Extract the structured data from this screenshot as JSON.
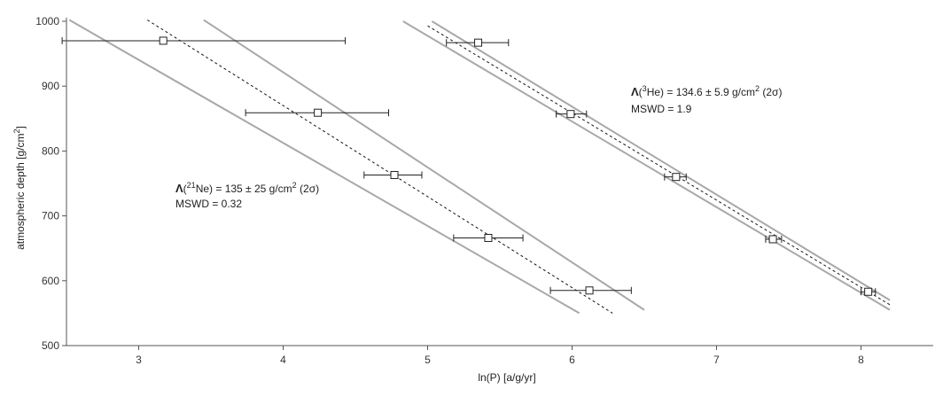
{
  "chart_data": {
    "type": "scatter",
    "xlabel": "ln(P) [a/g/yr]",
    "ylabel": "atmospheric depth [g/cm2]",
    "ylabel_parts": {
      "main": "atmospheric depth [g/cm",
      "sup": "2",
      "end": "]"
    },
    "xlim": [
      2.5,
      8.5
    ],
    "ylim": [
      500,
      1000
    ],
    "xticks": [
      3,
      4,
      5,
      6,
      7,
      8
    ],
    "yticks": [
      500,
      600,
      700,
      800,
      900,
      1000
    ],
    "grid": false,
    "series": [
      {
        "name": "21Ne",
        "points": [
          {
            "x": 3.17,
            "y": 970,
            "xerr_lo": 2.47,
            "xerr_hi": 4.43
          },
          {
            "x": 4.24,
            "y": 859,
            "xerr_lo": 3.74,
            "xerr_hi": 4.73
          },
          {
            "x": 4.77,
            "y": 763,
            "xerr_lo": 4.56,
            "xerr_hi": 4.96
          },
          {
            "x": 5.42,
            "y": 666,
            "xerr_lo": 5.18,
            "xerr_hi": 5.66
          },
          {
            "x": 6.12,
            "y": 585,
            "xerr_lo": 5.85,
            "xerr_hi": 6.41
          }
        ],
        "fit_line": [
          [
            3.06,
            1002
          ],
          [
            6.28,
            550
          ]
        ],
        "envelope": [
          [
            [
              2.52,
              1002
            ],
            [
              6.05,
              550
            ]
          ],
          [
            [
              3.45,
              1002
            ],
            [
              6.5,
              555
            ]
          ]
        ],
        "annotation": {
          "symbol": "Λ",
          "text": "(21Ne) = 135 ± 25 g/cm2 (2σ)",
          "parts": {
            "open": "(",
            "iso": "21",
            "el": "Ne) = 135 ± 25 g/cm",
            "sup": "2",
            "end": " (2σ)"
          },
          "mswd": "MSWD = 0.32"
        }
      },
      {
        "name": "3He",
        "points": [
          {
            "x": 5.35,
            "y": 967,
            "xerr_lo": 5.13,
            "xerr_hi": 5.56
          },
          {
            "x": 5.99,
            "y": 857,
            "xerr_lo": 5.89,
            "xerr_hi": 6.1
          },
          {
            "x": 6.72,
            "y": 760,
            "xerr_lo": 6.64,
            "xerr_hi": 6.79
          },
          {
            "x": 7.39,
            "y": 664,
            "xerr_lo": 7.34,
            "xerr_hi": 7.45
          },
          {
            "x": 8.05,
            "y": 583,
            "xerr_lo": 8.0,
            "xerr_hi": 8.1
          }
        ],
        "fit_line": [
          [
            5.0,
            993
          ],
          [
            8.2,
            563
          ]
        ],
        "envelope": [
          [
            [
              5.03,
              1000
            ],
            [
              8.2,
              570
            ]
          ],
          [
            [
              4.83,
              1000
            ],
            [
              8.2,
              555
            ]
          ]
        ],
        "annotation": {
          "symbol": "Λ",
          "text": "(3He) = 134.6 ± 5.9 g/cm2 (2σ)",
          "parts": {
            "open": "(",
            "iso": "3",
            "el": "He) = 134.6 ± 5.9 g/cm",
            "sup": "2",
            "end": " (2σ)"
          },
          "mswd": "MSWD = 1.9"
        }
      }
    ]
  }
}
